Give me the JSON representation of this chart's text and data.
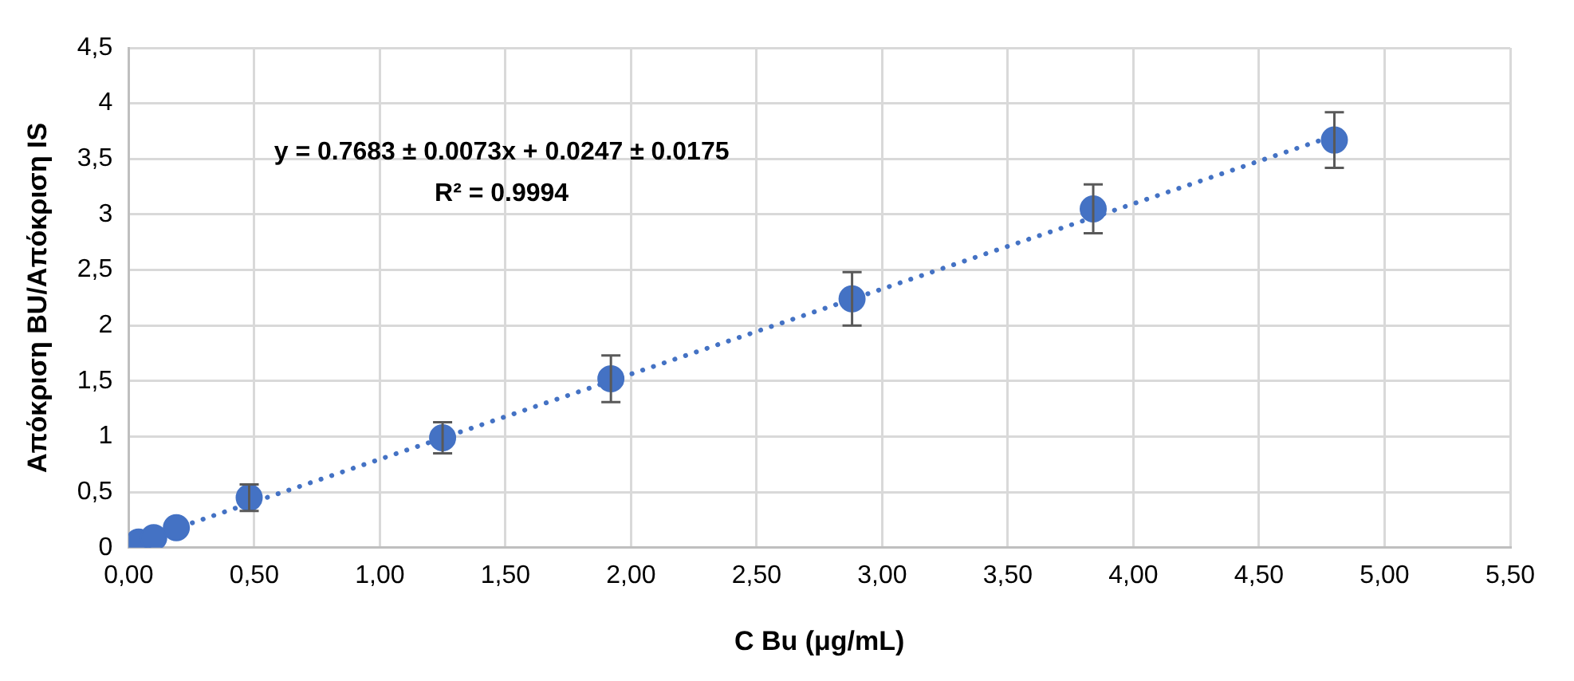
{
  "chart_data": {
    "type": "scatter",
    "xlabel": "C Bu (μg/mL)",
    "ylabel": "Απόκριση BU/Απόκριση IS",
    "annotations": [
      "y = 0.7683 ± 0.0073x + 0.0247 ± 0.0175",
      "R² = 0.9994"
    ],
    "xlim": [
      0,
      5.5
    ],
    "xticks": [
      {
        "value": 0,
        "label": "0,00"
      },
      {
        "value": 0.5,
        "label": "0,50"
      },
      {
        "value": 1,
        "label": "1,00"
      },
      {
        "value": 1.5,
        "label": "1,50"
      },
      {
        "value": 2,
        "label": "2,00"
      },
      {
        "value": 2.5,
        "label": "2,50"
      },
      {
        "value": 3,
        "label": "3,00"
      },
      {
        "value": 3.5,
        "label": "3,50"
      },
      {
        "value": 4,
        "label": "4,00"
      },
      {
        "value": 4.5,
        "label": "4,50"
      },
      {
        "value": 5,
        "label": "5,00"
      },
      {
        "value": 5.5,
        "label": "5,50"
      }
    ],
    "ylim": [
      0,
      4.5
    ],
    "yticks": [
      0,
      {
        "value": 0.5,
        "label": "0,5"
      },
      1,
      {
        "value": 1.5,
        "label": "1,5"
      },
      2,
      {
        "value": 2.5,
        "label": "2,5"
      },
      3,
      {
        "value": 3.5,
        "label": "3,5"
      },
      4,
      {
        "value": 4.5,
        "label": "4,5"
      }
    ],
    "grid": true,
    "marker": "circle",
    "series": [
      {
        "color": "#4472c4",
        "x": [
          0.04,
          0.1,
          0.19,
          0.48,
          1.25,
          1.92,
          2.88,
          3.84,
          4.8
        ],
        "values": [
          0.05,
          0.09,
          0.18,
          0.45,
          0.99,
          1.52,
          2.24,
          3.05,
          3.67
        ],
        "errors": [
          null,
          null,
          null,
          0.12,
          0.14,
          0.21,
          0.24,
          0.22,
          0.25
        ]
      },
      {
        "type": "line",
        "color": "#4472c4",
        "line_style": "dotted",
        "marker": "none",
        "x": [
          0.04,
          4.8
        ],
        "values": [
          0.06,
          3.71
        ]
      }
    ]
  }
}
